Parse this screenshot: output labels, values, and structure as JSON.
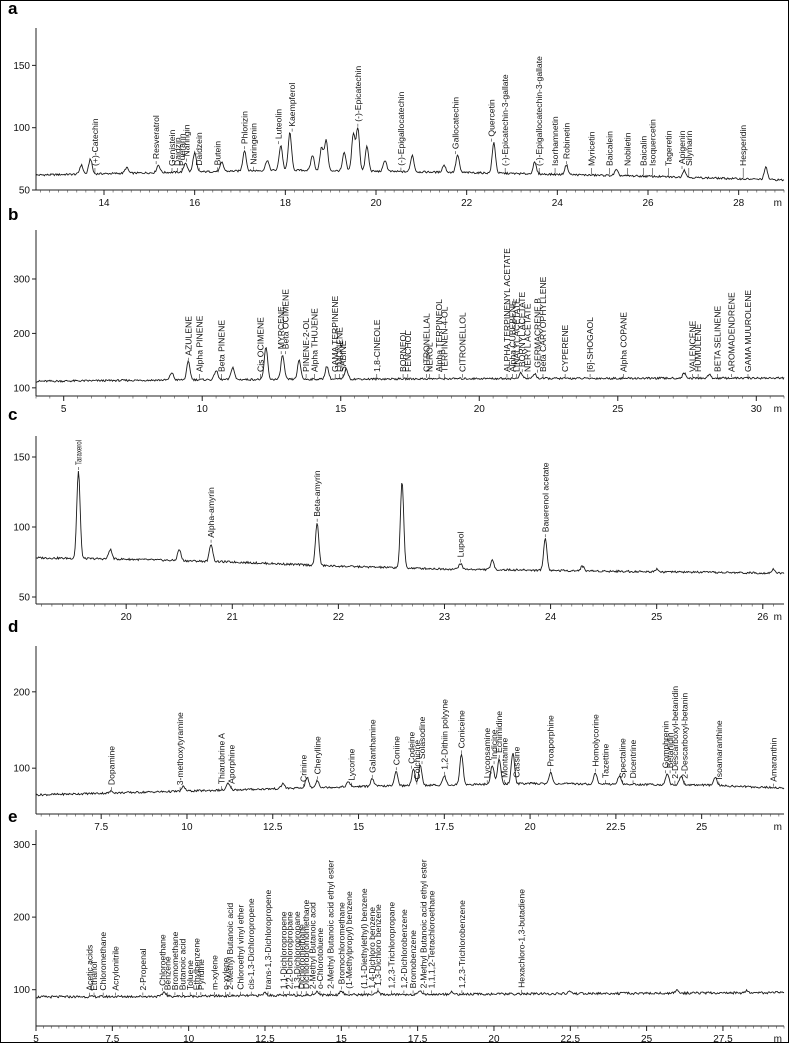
{
  "figure": {
    "panels": [
      "a",
      "b",
      "c",
      "d",
      "e"
    ]
  },
  "chart_data": [
    {
      "panel": "a",
      "type": "line",
      "x_unit": "m",
      "xlim": [
        12.5,
        29.0
      ],
      "ylim": [
        50,
        180
      ],
      "x_ticks": [
        14,
        16,
        18,
        20,
        22,
        24,
        26,
        28
      ],
      "y_ticks": [
        50,
        100,
        150
      ],
      "baseline": [
        [
          12.5,
          62
        ],
        [
          18,
          66
        ],
        [
          22,
          64
        ],
        [
          26,
          61
        ],
        [
          29,
          58
        ]
      ],
      "peaks": [
        [
          13.5,
          70
        ],
        [
          13.7,
          75
        ],
        [
          14.5,
          68
        ],
        [
          15.2,
          70
        ],
        [
          15.8,
          72
        ],
        [
          16.0,
          80
        ],
        [
          16.6,
          72
        ],
        [
          17.1,
          82
        ],
        [
          17.6,
          74
        ],
        [
          17.9,
          86
        ],
        [
          18.1,
          96
        ],
        [
          18.6,
          78
        ],
        [
          18.8,
          84
        ],
        [
          18.9,
          90
        ],
        [
          19.3,
          80
        ],
        [
          19.5,
          95
        ],
        [
          19.6,
          100
        ],
        [
          19.8,
          85
        ],
        [
          20.2,
          74
        ],
        [
          20.8,
          78
        ],
        [
          21.5,
          70
        ],
        [
          21.8,
          78
        ],
        [
          22.6,
          88
        ],
        [
          23.5,
          72
        ],
        [
          24.2,
          70
        ],
        [
          25.3,
          66
        ],
        [
          26.8,
          66
        ],
        [
          28.6,
          68
        ]
      ],
      "labels": [
        {
          "text": "(+)-Catechin",
          "x": 13.8
        },
        {
          "text": "Resveratrol",
          "x": 15.15
        },
        {
          "text": "Genistein",
          "x": 15.5
        },
        {
          "text": "Daidzin",
          "x": 15.62
        },
        {
          "text": "Puerarin",
          "x": 15.72
        },
        {
          "text": "Naringin",
          "x": 15.82
        },
        {
          "text": "Daidzein",
          "x": 16.1
        },
        {
          "text": "Butein",
          "x": 16.5
        },
        {
          "text": "Phlorizin",
          "x": 17.1
        },
        {
          "text": "Naringenin",
          "x": 17.3
        },
        {
          "text": "Luteolin",
          "x": 17.85
        },
        {
          "text": "Kaempferol",
          "x": 18.15
        },
        {
          "text": "(-)-Epicatechin",
          "x": 19.6
        },
        {
          "text": "(-)-Epigallocatechin",
          "x": 20.55
        },
        {
          "text": "Gallocatechin",
          "x": 21.75
        },
        {
          "text": "Quercetin",
          "x": 22.55
        },
        {
          "text": "(-)-Epicatechin-3-gallate",
          "x": 22.85
        },
        {
          "text": "(-)-Epigallocatechin-3-gallate",
          "x": 23.6
        },
        {
          "text": "Isorhamnetin",
          "x": 23.95
        },
        {
          "text": "Robinetin",
          "x": 24.2
        },
        {
          "text": "Myricetin",
          "x": 24.75
        },
        {
          "text": "Baicalein",
          "x": 25.15
        },
        {
          "text": "Nobiletin",
          "x": 25.55
        },
        {
          "text": "Baicalin",
          "x": 25.9
        },
        {
          "text": "Isoquercetin",
          "x": 26.1
        },
        {
          "text": "Tageretin",
          "x": 26.45
        },
        {
          "text": "Apigenin",
          "x": 26.75
        },
        {
          "text": "Silymarin",
          "x": 26.9
        },
        {
          "text": "Hesperidin",
          "x": 28.1
        }
      ]
    },
    {
      "panel": "b",
      "type": "line",
      "x_unit": "m",
      "xlim": [
        4.0,
        31.0
      ],
      "ylim": [
        85,
        390
      ],
      "x_ticks": [
        5,
        10,
        15,
        20,
        25,
        30
      ],
      "y_ticks": [
        100,
        200,
        300
      ],
      "baseline": [
        [
          4.0,
          112
        ],
        [
          10,
          115
        ],
        [
          20,
          117
        ],
        [
          31,
          118
        ]
      ],
      "peaks": [
        [
          8.9,
          128
        ],
        [
          9.5,
          148
        ],
        [
          10.5,
          132
        ],
        [
          11.1,
          138
        ],
        [
          12.3,
          175
        ],
        [
          12.9,
          160
        ],
        [
          13.5,
          150
        ],
        [
          14.5,
          140
        ],
        [
          15.2,
          135
        ],
        [
          21.5,
          127
        ],
        [
          22.0,
          126
        ],
        [
          27.4,
          127
        ],
        [
          28.3,
          124
        ]
      ],
      "labels": [
        {
          "text": "AZULENE",
          "x": 9.5
        },
        {
          "text": "Alpha PINENE",
          "x": 9.9
        },
        {
          "text": "Beta PINENE",
          "x": 10.7
        },
        {
          "text": "Cis OCIMENE",
          "x": 12.1
        },
        {
          "text": "MYRCENE",
          "x": 12.85
        },
        {
          "text": "Beta OCIMENE",
          "x": 13.0
        },
        {
          "text": "PINENE-2-OL",
          "x": 13.75
        },
        {
          "text": "Alpha THUJENE",
          "x": 14.05
        },
        {
          "text": "GAMA TERPINENE",
          "x": 14.8
        },
        {
          "text": "LIMONENE",
          "x": 14.95
        },
        {
          "text": "SABINE",
          "x": 15.08
        },
        {
          "text": "1,8-CINEOLE",
          "x": 16.3
        },
        {
          "text": "BORNEOL",
          "x": 17.25
        },
        {
          "text": "FENCHOL",
          "x": 17.42
        },
        {
          "text": "CITRONELLAL",
          "x": 18.1
        },
        {
          "text": "NEROL",
          "x": 18.2
        },
        {
          "text": "Alpha TERPINEOL",
          "x": 18.55
        },
        {
          "text": "TERPINEN-4-OL",
          "x": 18.75
        },
        {
          "text": "CITRONELLOL",
          "x": 19.4
        },
        {
          "text": "ALPHA TERPINENYL ACETATE",
          "x": 21.0
        },
        {
          "text": "Alpha CUBEBENE",
          "x": 21.2
        },
        {
          "text": "LINALYL ACETATE",
          "x": 21.35
        },
        {
          "text": "BORNYL ACETATE",
          "x": 21.55
        },
        {
          "text": "NERYL ACETATE",
          "x": 21.75
        },
        {
          "text": "GERMACRENE B",
          "x": 22.1
        },
        {
          "text": "Beta CARYOPHYLLENE",
          "x": 22.3
        },
        {
          "text": "CYPERENE",
          "x": 23.1
        },
        {
          "text": "[6]-SHOGAOL",
          "x": 24.0
        },
        {
          "text": "Alpha COPANE",
          "x": 25.2
        },
        {
          "text": "VALENCENE",
          "x": 27.7
        },
        {
          "text": "HUMULENE",
          "x": 27.9
        },
        {
          "text": "BETA SELINENE",
          "x": 28.6
        },
        {
          "text": "AROMADENDRENE",
          "x": 29.1
        },
        {
          "text": "GAMA MUUROLENE",
          "x": 29.7
        }
      ]
    },
    {
      "panel": "c",
      "type": "line",
      "x_unit": "m",
      "xlim": [
        19.15,
        26.2
      ],
      "ylim": [
        45,
        165
      ],
      "x_ticks": [
        20,
        21,
        22,
        23,
        24,
        25,
        26
      ],
      "y_ticks": [
        50,
        100,
        150
      ],
      "baseline": [
        [
          19.15,
          78
        ],
        [
          20,
          77
        ],
        [
          21,
          75
        ],
        [
          22,
          72
        ],
        [
          23,
          70
        ],
        [
          24,
          69
        ],
        [
          25,
          68
        ],
        [
          26.2,
          67
        ]
      ],
      "peaks": [
        [
          19.55,
          140
        ],
        [
          19.85,
          84
        ],
        [
          20.5,
          84
        ],
        [
          20.8,
          88
        ],
        [
          21.8,
          103
        ],
        [
          22.6,
          132
        ],
        [
          23.15,
          74
        ],
        [
          23.45,
          76
        ],
        [
          23.95,
          92
        ],
        [
          24.3,
          72
        ],
        [
          25.0,
          70
        ],
        [
          26.1,
          70
        ]
      ],
      "labels": [
        {
          "text": "Taraxerol",
          "x": 19.55
        },
        {
          "text": "Alpha-amyrin",
          "x": 20.8
        },
        {
          "text": "Beta-amyrin",
          "x": 21.8
        },
        {
          "text": "Lupeol",
          "x": 23.15
        },
        {
          "text": "Bauerenol acetate",
          "x": 23.95
        }
      ]
    },
    {
      "panel": "d",
      "type": "line",
      "x_unit": "m",
      "xlim": [
        5.6,
        27.4
      ],
      "ylim": [
        40,
        260
      ],
      "x_ticks": [
        7.5,
        10.0,
        12.5,
        15.0,
        17.5,
        20.0,
        22.5,
        25.0
      ],
      "y_ticks": [
        100,
        200
      ],
      "baseline": [
        [
          5.6,
          65
        ],
        [
          10,
          70
        ],
        [
          15,
          76
        ],
        [
          20,
          80
        ],
        [
          25,
          78
        ],
        [
          27.4,
          74
        ]
      ],
      "peaks": [
        [
          7.8,
          70
        ],
        [
          9.9,
          76
        ],
        [
          11.2,
          80
        ],
        [
          12.8,
          80
        ],
        [
          13.5,
          88
        ],
        [
          13.8,
          84
        ],
        [
          14.7,
          82
        ],
        [
          15.4,
          86
        ],
        [
          16.1,
          96
        ],
        [
          16.6,
          98
        ],
        [
          16.8,
          104
        ],
        [
          17.5,
          90
        ],
        [
          18.0,
          118
        ],
        [
          18.9,
          104
        ],
        [
          19.1,
          112
        ],
        [
          19.5,
          120
        ],
        [
          20.6,
          94
        ],
        [
          21.9,
          94
        ],
        [
          22.6,
          90
        ],
        [
          24.0,
          92
        ],
        [
          24.4,
          90
        ],
        [
          25.4,
          88
        ]
      ],
      "labels": [
        {
          "text": "Dopamine",
          "x": 7.8
        },
        {
          "text": "3-methoxytyramine",
          "x": 9.8
        },
        {
          "text": "Thiarubrine A",
          "x": 11.0
        },
        {
          "text": "Aporphine",
          "x": 11.3
        },
        {
          "text": "Crinine",
          "x": 13.4
        },
        {
          "text": "Cherylline",
          "x": 13.8
        },
        {
          "text": "Lycorine",
          "x": 14.8
        },
        {
          "text": "Galanthamine",
          "x": 15.4
        },
        {
          "text": "Coniine",
          "x": 16.1
        },
        {
          "text": "Codeine",
          "x": 16.55
        },
        {
          "text": "Colchicine",
          "x": 16.7
        },
        {
          "text": "Solasodine",
          "x": 16.85
        },
        {
          "text": "1,2-Dithiin polyyne",
          "x": 17.5
        },
        {
          "text": "Coniceine",
          "x": 18.0
        },
        {
          "text": "Lycopsamine",
          "x": 18.75
        },
        {
          "text": "Indicine",
          "x": 18.95
        },
        {
          "text": "Echimidine",
          "x": 19.1
        },
        {
          "text": "Montanine",
          "x": 19.25
        },
        {
          "text": "Cassine",
          "x": 19.6
        },
        {
          "text": "Proaporphine",
          "x": 20.6
        },
        {
          "text": "Homolycorine",
          "x": 21.9
        },
        {
          "text": "Tazettine",
          "x": 22.2
        },
        {
          "text": "Spectaline",
          "x": 22.7
        },
        {
          "text": "Dicentrine",
          "x": 23.0
        },
        {
          "text": "Gomphrenin",
          "x": 23.95
        },
        {
          "text": "Betanidin",
          "x": 24.08
        },
        {
          "text": "2-Descarboxyl-betanidin",
          "x": 24.22
        },
        {
          "text": "2-Descarboxyl-betanin",
          "x": 24.5
        },
        {
          "text": "Isoamaranthine",
          "x": 25.5
        },
        {
          "text": "Amaranthin",
          "x": 27.1
        }
      ]
    },
    {
      "panel": "e",
      "type": "line",
      "x_unit": "m",
      "xlim": [
        5.0,
        29.5
      ],
      "ylim": [
        50,
        320
      ],
      "x_ticks": [
        5,
        7.5,
        10,
        12.5,
        15,
        17.5,
        20,
        22.5,
        25,
        27.5
      ],
      "y_ticks": [
        100,
        200,
        300
      ],
      "baseline": [
        [
          5.0,
          90
        ],
        [
          10,
          91
        ],
        [
          15,
          93
        ],
        [
          20,
          94
        ],
        [
          25,
          95
        ],
        [
          29.5,
          96
        ]
      ],
      "peaks": [
        [
          9.2,
          97
        ],
        [
          12.5,
          96
        ],
        [
          14.2,
          98
        ],
        [
          15.0,
          99
        ],
        [
          16.2,
          97
        ],
        [
          17.6,
          98
        ],
        [
          18.6,
          97
        ],
        [
          22.5,
          98
        ],
        [
          26.0,
          99
        ],
        [
          28.3,
          99
        ]
      ],
      "labels": [
        {
          "text": "Acetic acids",
          "x": 6.75
        },
        {
          "text": "Ethanol",
          "x": 6.9
        },
        {
          "text": "Chloromethane",
          "x": 7.2
        },
        {
          "text": "Acrylonitrile",
          "x": 7.6
        },
        {
          "text": "2-Propenal",
          "x": 8.5
        },
        {
          "text": "Chloroethane",
          "x": 9.15
        },
        {
          "text": "Benzene",
          "x": 9.3
        },
        {
          "text": "Bromomethane",
          "x": 9.55
        },
        {
          "text": "Butanoic acid",
          "x": 9.8
        },
        {
          "text": "Toluene",
          "x": 10.05
        },
        {
          "text": "Ethylbenzene",
          "x": 10.25
        },
        {
          "text": "Pyridine",
          "x": 10.4
        },
        {
          "text": "m-xylene",
          "x": 10.85
        },
        {
          "text": "o-xylene",
          "x": 11.2
        },
        {
          "text": "2-Methyl Butanoic acid",
          "x": 11.35
        },
        {
          "text": "Chloroethyl vinyl ether",
          "x": 11.7
        },
        {
          "text": "cis-1,3-Dichloropropene",
          "x": 12.05
        },
        {
          "text": "trans-1,3-Dichloropropene",
          "x": 12.6
        },
        {
          "text": "1,1-Dichloropropene",
          "x": 13.1
        },
        {
          "text": "2,2-Dichloropropane",
          "x": 13.3
        },
        {
          "text": "1,3-Dichloropropane",
          "x": 13.55
        },
        {
          "text": "Dichloromethane",
          "x": 13.7
        },
        {
          "text": "Dichlorobromomethane",
          "x": 13.85
        },
        {
          "text": "2-Methyl Butanoic acid",
          "x": 14.05
        },
        {
          "text": "o-Chlorotoluene",
          "x": 14.3
        },
        {
          "text": "2-Methyl Butanoic acid ethyl ester",
          "x": 14.65
        },
        {
          "text": "Bromochloromethane",
          "x": 15.0
        },
        {
          "text": "(1-Methylpropyl) benzene",
          "x": 15.25
        },
        {
          "text": "(1,1-Diethylethyl) benzene",
          "x": 15.75
        },
        {
          "text": "1,4-Dichloro benzene",
          "x": 16.0
        },
        {
          "text": "1,3-Dichloro benzene",
          "x": 16.2
        },
        {
          "text": "1,2,3-Trichloropropane",
          "x": 16.65
        },
        {
          "text": "1,2-Dichlorobenzene",
          "x": 17.05
        },
        {
          "text": "Bromobenzene",
          "x": 17.35
        },
        {
          "text": "2-Methyl Butanoic acid ethyl ester",
          "x": 17.7
        },
        {
          "text": "1,1,1,2-Tetrachloroethane",
          "x": 17.95
        },
        {
          "text": "1,2,3-Trichlorobenzene",
          "x": 18.95
        },
        {
          "text": "Hexachloro-1,3-butadiene",
          "x": 20.9
        }
      ]
    }
  ]
}
